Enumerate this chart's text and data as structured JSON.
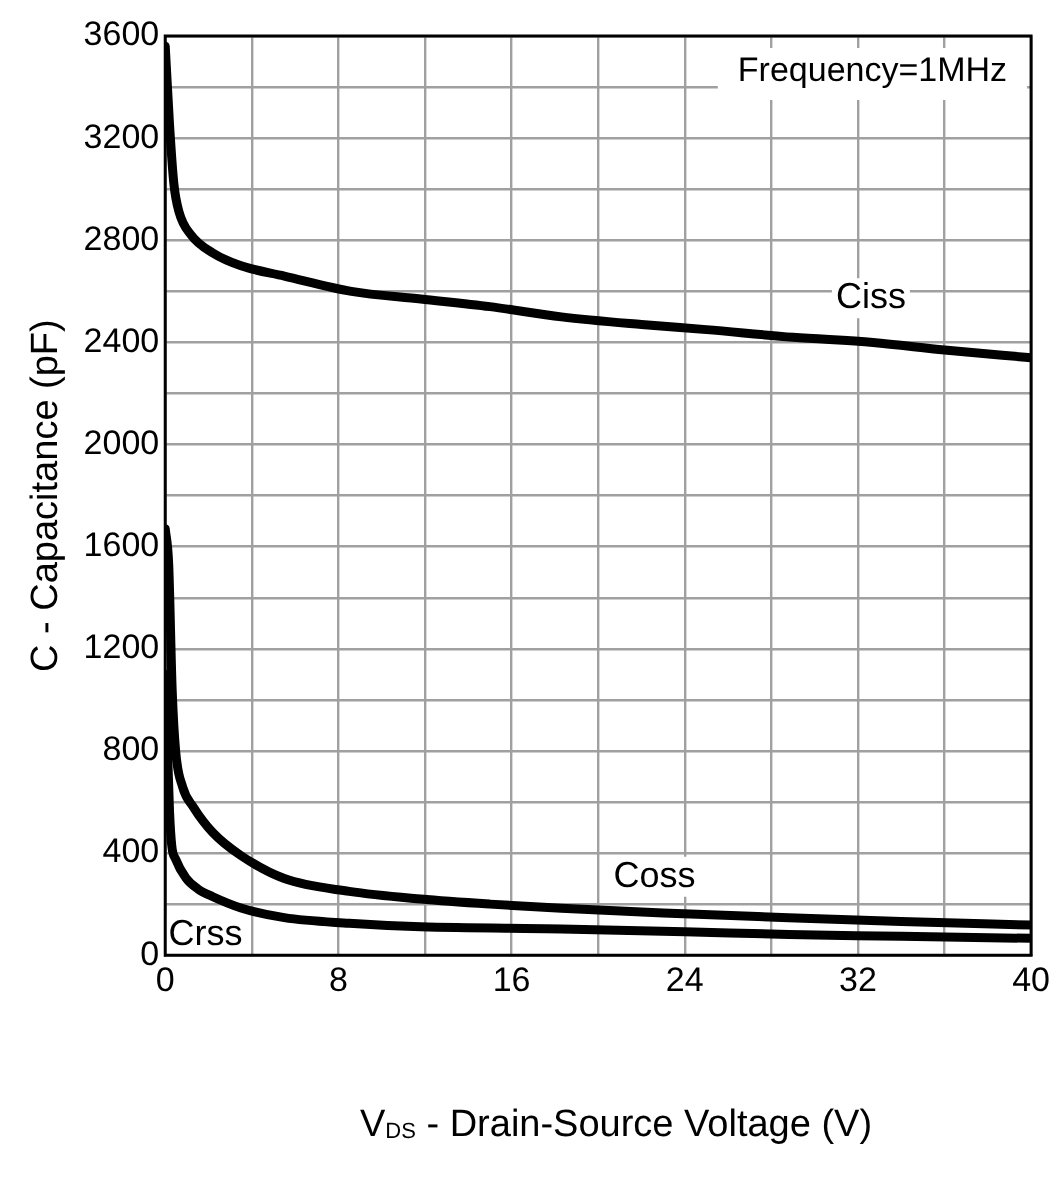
{
  "chart_data": {
    "type": "line",
    "xlabel": "V$_{DS}$ - Drain-Source Voltage (V)",
    "ylabel": "C - Capacitance (pF)",
    "annotations": [
      "Frequency=1MHz"
    ],
    "xlim": [
      0,
      40
    ],
    "xticks": [
      0,
      {
        "value": 4,
        "label": null
      },
      8,
      {
        "value": 12,
        "label": null
      },
      16,
      {
        "value": 20,
        "label": null
      },
      24,
      {
        "value": 28,
        "label": null
      },
      32,
      {
        "value": 36,
        "label": null
      },
      40
    ],
    "ylim": [
      0,
      3600
    ],
    "yticks": [
      0,
      {
        "value": 200,
        "label": null
      },
      400,
      {
        "value": 600,
        "label": null
      },
      800,
      {
        "value": 1000,
        "label": null
      },
      1200,
      {
        "value": 1400,
        "label": null
      },
      1600,
      {
        "value": 1800,
        "label": null
      },
      2000,
      {
        "value": 2200,
        "label": null
      },
      2400,
      {
        "value": 2600,
        "label": null
      },
      2800,
      {
        "value": 3000,
        "label": null
      },
      3200,
      {
        "value": 3400,
        "label": null
      },
      3600
    ],
    "grid": true,
    "legend": false,
    "marker": "none",
    "line_style": "solid",
    "series": [
      {
        "name": "Ciss",
        "color": "#000000",
        "x": [
          0,
          0.2,
          0.4,
          0.64,
          1.2,
          2.2,
          3.5,
          5.5,
          8.6,
          11.8,
          15,
          18.3,
          22,
          25,
          29,
          32.7,
          36,
          40
        ],
        "values": [
          3560,
          3250,
          3020,
          2910,
          2820,
          2750,
          2700,
          2660,
          2600,
          2570,
          2540,
          2500,
          2470,
          2450,
          2420,
          2400,
          2370,
          2340
        ]
      },
      {
        "name": "Coss",
        "color": "#000000",
        "x": [
          0,
          0.16,
          0.32,
          0.48,
          0.8,
          1.3,
          2.2,
          3.5,
          5.5,
          8.5,
          11.8,
          15,
          18.3,
          23,
          28.8,
          34,
          40
        ],
        "values": [
          1670,
          1530,
          1040,
          800,
          660,
          580,
          480,
          390,
          300,
          250,
          220,
          200,
          184,
          165,
          147,
          132,
          118
        ]
      },
      {
        "name": "Crss",
        "color": "#000000",
        "x": [
          0,
          0.1,
          0.2,
          0.3,
          0.48,
          0.96,
          1.5,
          2.2,
          3.5,
          5.5,
          8.5,
          11.8,
          18.3,
          24,
          28.8,
          34,
          40
        ],
        "values": [
          1100,
          820,
          560,
          430,
          376,
          302,
          260,
          229,
          185,
          147,
          125,
          111,
          103,
          92,
          81,
          74,
          66
        ]
      }
    ]
  }
}
